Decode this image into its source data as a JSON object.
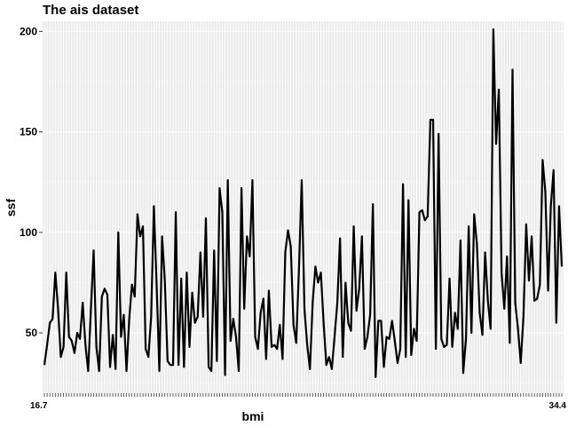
{
  "chart_data": {
    "type": "line",
    "title": "The ais dataset",
    "xlabel": "bmi",
    "ylabel": "ssf",
    "ylim": [
      20,
      205
    ],
    "y_ticks": [
      50,
      100,
      150,
      200
    ],
    "x_tick_labels_first": "16.7",
    "x_tick_labels_last": "34.4",
    "grid": true,
    "colors": {
      "panel": "#ebebeb",
      "grid_major": "#ffffff",
      "grid_minor": "#f5f5f5",
      "line": "#000000"
    },
    "series": [
      {
        "values": [
          34,
          44,
          55,
          57,
          80,
          62,
          38,
          43,
          80,
          48,
          46,
          40,
          50,
          47,
          65,
          44,
          31,
          62,
          91,
          43,
          31,
          68,
          72,
          69,
          33,
          49,
          32,
          100,
          48,
          59,
          31,
          57,
          74,
          68,
          109,
          98,
          103,
          42,
          38,
          58,
          113,
          74,
          31,
          98,
          76,
          36,
          34,
          34,
          110,
          34,
          77,
          33,
          80,
          43,
          70,
          55,
          58,
          90,
          58,
          107,
          33,
          31,
          91,
          36,
          122,
          110,
          29,
          126,
          46,
          57,
          48,
          31,
          122,
          62,
          98,
          88,
          126,
          48,
          42,
          60,
          67,
          37,
          71,
          43,
          44,
          42,
          54,
          37,
          90,
          101,
          93,
          54,
          45,
          82,
          126,
          62,
          44,
          32,
          65,
          83,
          75,
          80,
          55,
          34,
          38,
          32,
          48,
          65,
          97,
          38,
          75,
          55,
          51,
          103,
          61,
          72,
          98,
          42,
          48,
          59,
          114,
          28,
          56,
          56,
          33,
          48,
          47,
          56,
          46,
          35,
          42,
          124,
          38,
          116,
          39,
          52,
          46,
          110,
          111,
          106,
          108,
          156,
          156,
          42,
          149,
          47,
          43,
          44,
          77,
          43,
          60,
          52,
          96,
          30,
          47,
          103,
          50,
          109,
          94,
          60,
          49,
          90,
          66,
          52,
          201,
          144,
          171,
          80,
          62,
          88,
          45,
          181,
          65,
          52,
          35,
          58,
          104,
          76,
          98,
          66,
          67,
          74,
          136,
          120,
          71,
          113,
          131,
          55,
          113,
          83
        ]
      }
    ]
  }
}
